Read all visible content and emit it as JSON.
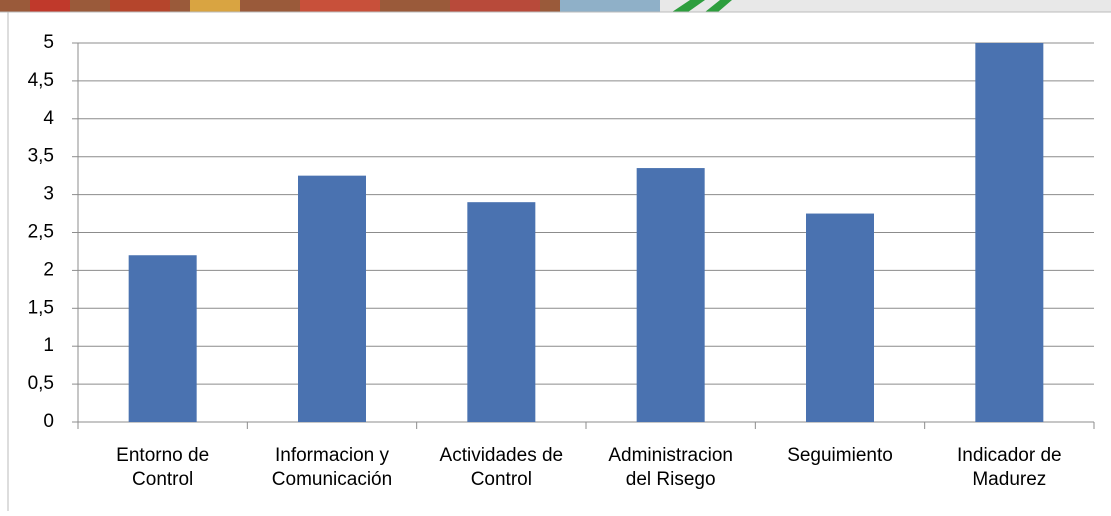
{
  "chart_data": {
    "type": "bar",
    "categories": [
      "Entorno de\nControl",
      "Informacion y\nComunicación",
      "Actividades de\nControl",
      "Administracion\ndel Risego",
      "Seguimiento",
      "Indicador de\nMadurez"
    ],
    "values": [
      2.2,
      3.25,
      2.9,
      3.35,
      2.75,
      5
    ],
    "color": "#4a72b0",
    "ylim": [
      0,
      5
    ],
    "yticks": [
      0,
      {
        "value": 0.5,
        "label": "0,5"
      },
      1,
      {
        "value": 1.5,
        "label": "1,5"
      },
      2,
      {
        "value": 2.5,
        "label": "2,5"
      },
      3,
      {
        "value": 3.5,
        "label": "3,5"
      },
      4,
      {
        "value": 4.5,
        "label": "4,5"
      },
      5
    ],
    "grid": true
  }
}
